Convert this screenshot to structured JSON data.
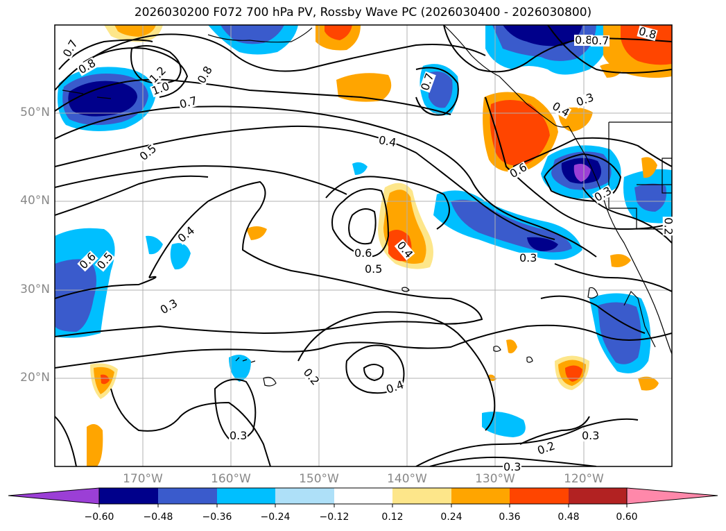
{
  "title": "2026030200 F072 700 hPa PV, Rossby Wave PC (2026030400 - 2026030800)",
  "map": {
    "latitude_labels": [
      "50°N",
      "40°N",
      "30°N",
      "20°N"
    ],
    "longitude_labels": [
      "170°W",
      "160°W",
      "150°W",
      "140°W",
      "130°W",
      "120°W"
    ],
    "contour_labels": [
      "0.7",
      "0.8",
      "1.2",
      "1.0",
      "0.8",
      "0.7",
      "0.5",
      "0.4",
      "0.7",
      "0.8",
      "0.7",
      "0.4",
      "0.3",
      "0.8",
      "0.6",
      "0.3",
      "0.4",
      "0.6",
      "0.5",
      "0.6",
      "0.5",
      "0.4",
      "0.3",
      "0.3",
      "0.2",
      "0.4",
      "0.3",
      "0.2",
      "0.3",
      "0.3",
      "0.2"
    ],
    "land_color": "#000000",
    "grid_color": "#b0b0b0"
  },
  "colorbar": {
    "ticks": [
      "−0.60",
      "−0.48",
      "−0.36",
      "−0.24",
      "−0.12",
      "0.12",
      "0.24",
      "0.36",
      "0.48",
      "0.60"
    ],
    "colors": [
      "#9b3fd6",
      "#00008b",
      "#3a5bcc",
      "#00bfff",
      "#aee0f8",
      "#ffffff",
      "#fde68a",
      "#ffa500",
      "#ff4500",
      "#b22222",
      "#ff88aa"
    ]
  }
}
